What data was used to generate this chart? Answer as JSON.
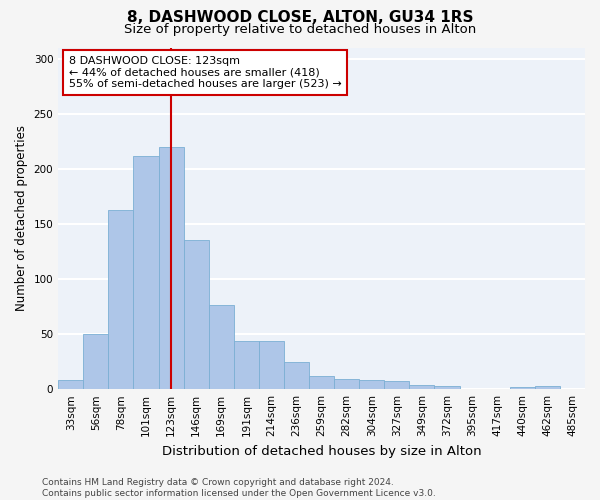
{
  "title1": "8, DASHWOOD CLOSE, ALTON, GU34 1RS",
  "title2": "Size of property relative to detached houses in Alton",
  "xlabel": "Distribution of detached houses by size in Alton",
  "ylabel": "Number of detached properties",
  "bar_labels": [
    "33sqm",
    "56sqm",
    "78sqm",
    "101sqm",
    "123sqm",
    "146sqm",
    "169sqm",
    "191sqm",
    "214sqm",
    "236sqm",
    "259sqm",
    "282sqm",
    "304sqm",
    "327sqm",
    "349sqm",
    "372sqm",
    "395sqm",
    "417sqm",
    "440sqm",
    "462sqm",
    "485sqm"
  ],
  "bar_values": [
    8,
    50,
    163,
    212,
    220,
    135,
    76,
    44,
    44,
    25,
    12,
    9,
    8,
    7,
    4,
    3,
    0,
    0,
    2,
    3,
    0
  ],
  "bar_color": "#aec6e8",
  "bar_edgecolor": "#7bafd4",
  "vline_color": "#cc0000",
  "vline_x_index": 4,
  "annotation_text": "8 DASHWOOD CLOSE: 123sqm\n← 44% of detached houses are smaller (418)\n55% of semi-detached houses are larger (523) →",
  "annotation_box_edgecolor": "#cc0000",
  "footer": "Contains HM Land Registry data © Crown copyright and database right 2024.\nContains public sector information licensed under the Open Government Licence v3.0.",
  "ylim": [
    0,
    310
  ],
  "yticks": [
    0,
    50,
    100,
    150,
    200,
    250,
    300
  ],
  "bg_color": "#edf2f9",
  "grid_color": "#ffffff",
  "title1_fontsize": 11,
  "title2_fontsize": 9.5,
  "xlabel_fontsize": 9.5,
  "ylabel_fontsize": 8.5,
  "tick_fontsize": 7.5,
  "annotation_fontsize": 8,
  "footer_fontsize": 6.5,
  "fig_bg": "#f5f5f5"
}
